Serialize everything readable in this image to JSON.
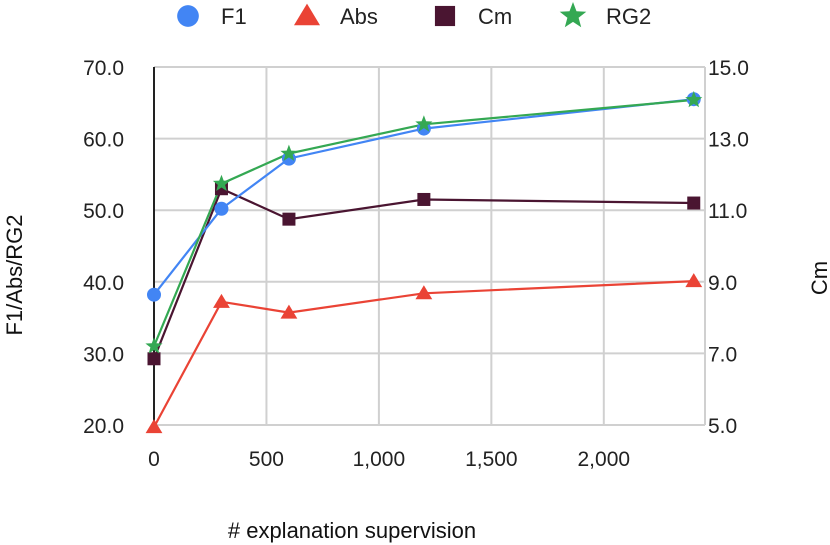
{
  "chart_data": {
    "type": "line",
    "title": "",
    "xlabel": "# explanation supervision",
    "ylabel": "F1/Abs/RG2",
    "y2label": "Cm",
    "xlim": [
      0,
      2500
    ],
    "ylim": [
      20,
      70
    ],
    "y2lim": [
      5,
      15
    ],
    "x_ticks": [
      0,
      500,
      1000,
      1500,
      2000
    ],
    "x_tick_labels": [
      "0",
      "500",
      "1,000",
      "1,500",
      "2,000"
    ],
    "y_ticks": [
      20,
      30,
      40,
      50,
      60,
      70
    ],
    "y_tick_labels": [
      "20.0",
      "30.0",
      "40.0",
      "50.0",
      "60.0",
      "70.0"
    ],
    "y2_ticks": [
      5,
      7,
      9,
      11,
      13,
      15
    ],
    "y2_tick_labels": [
      "5.0",
      "7.0",
      "9.0",
      "11.0",
      "13.0",
      "15.0"
    ],
    "grid": true,
    "legend_position": "top",
    "x": [
      0,
      300,
      600,
      1200,
      2400
    ],
    "series": [
      {
        "name": "F1",
        "axis": "left",
        "marker": "circle",
        "color": "#4285F4",
        "values": [
          38.2,
          50.2,
          57.2,
          61.4,
          65.5
        ]
      },
      {
        "name": "Abs",
        "axis": "left",
        "marker": "triangle",
        "color": "#EA4335",
        "values": [
          19.7,
          37.2,
          35.7,
          38.4,
          40.1
        ]
      },
      {
        "name": "Cm",
        "axis": "right",
        "marker": "square",
        "color": "#4A1531",
        "values": [
          6.85,
          11.6,
          10.75,
          11.3,
          11.2
        ]
      },
      {
        "name": "RG2",
        "axis": "left",
        "marker": "star",
        "color": "#34A853",
        "values": [
          31.0,
          53.7,
          57.9,
          62.0,
          65.4
        ]
      }
    ]
  }
}
